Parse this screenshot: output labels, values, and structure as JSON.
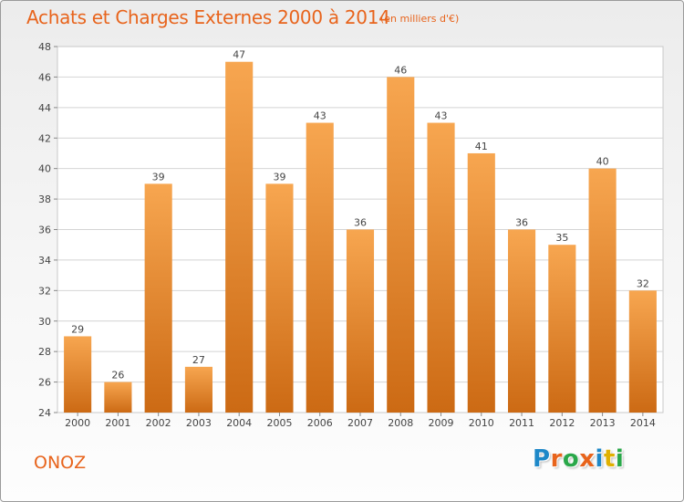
{
  "header": {
    "title": "Achats et Charges Externes 2000 à 2014",
    "subtitle": "(en milliers d'€)"
  },
  "footer": {
    "commune": "ONOZ",
    "logo": {
      "text": "Proxiti",
      "letter_colors": [
        "#1e88c8",
        "#e8641c",
        "#2aa84a",
        "#e8641c",
        "#1e88c8",
        "#e0b000",
        "#2aa84a"
      ]
    }
  },
  "colors": {
    "bar_light": "#f7a650",
    "bar_dark": "#cc6a14",
    "text": "#444444",
    "grid": "#d4d4d4",
    "accent": "#e8641c"
  },
  "chart_data": {
    "type": "bar",
    "title": "Achats et Charges Externes 2000 à 2014",
    "categories": [
      "2000",
      "2001",
      "2002",
      "2003",
      "2004",
      "2005",
      "2006",
      "2007",
      "2008",
      "2009",
      "2010",
      "2011",
      "2012",
      "2013",
      "2014"
    ],
    "values": [
      29,
      26,
      39,
      27,
      47,
      39,
      43,
      36,
      46,
      43,
      41,
      36,
      35,
      40,
      32
    ],
    "value_labels": [
      "29",
      "26",
      "39",
      "27",
      "47",
      "39",
      "43",
      "36",
      "46",
      "43",
      "41",
      "36",
      "35",
      "40",
      "32"
    ],
    "y_ticks": [
      "24",
      "26",
      "28",
      "30",
      "32",
      "34",
      "36",
      "38",
      "40",
      "42",
      "44",
      "46",
      "48"
    ],
    "ylim": [
      24,
      48
    ],
    "grid": true,
    "legend": "none"
  }
}
